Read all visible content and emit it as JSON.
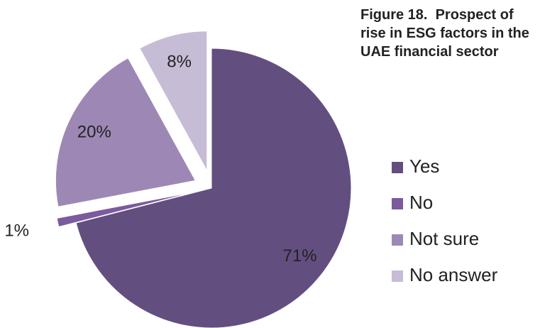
{
  "chart_data": {
    "type": "pie",
    "title": "Figure 18.  Prospect of rise in ESG factors in the UAE financial sector",
    "categories": [
      "Yes",
      "No",
      "Not sure",
      "No answer"
    ],
    "values": [
      71,
      1,
      20,
      8
    ],
    "value_labels": [
      "71%",
      "1%",
      "20%",
      "8%"
    ],
    "colors": [
      "#634e80",
      "#7b5a9e",
      "#9d88b5",
      "#c6bcd6"
    ],
    "legend": "right"
  }
}
